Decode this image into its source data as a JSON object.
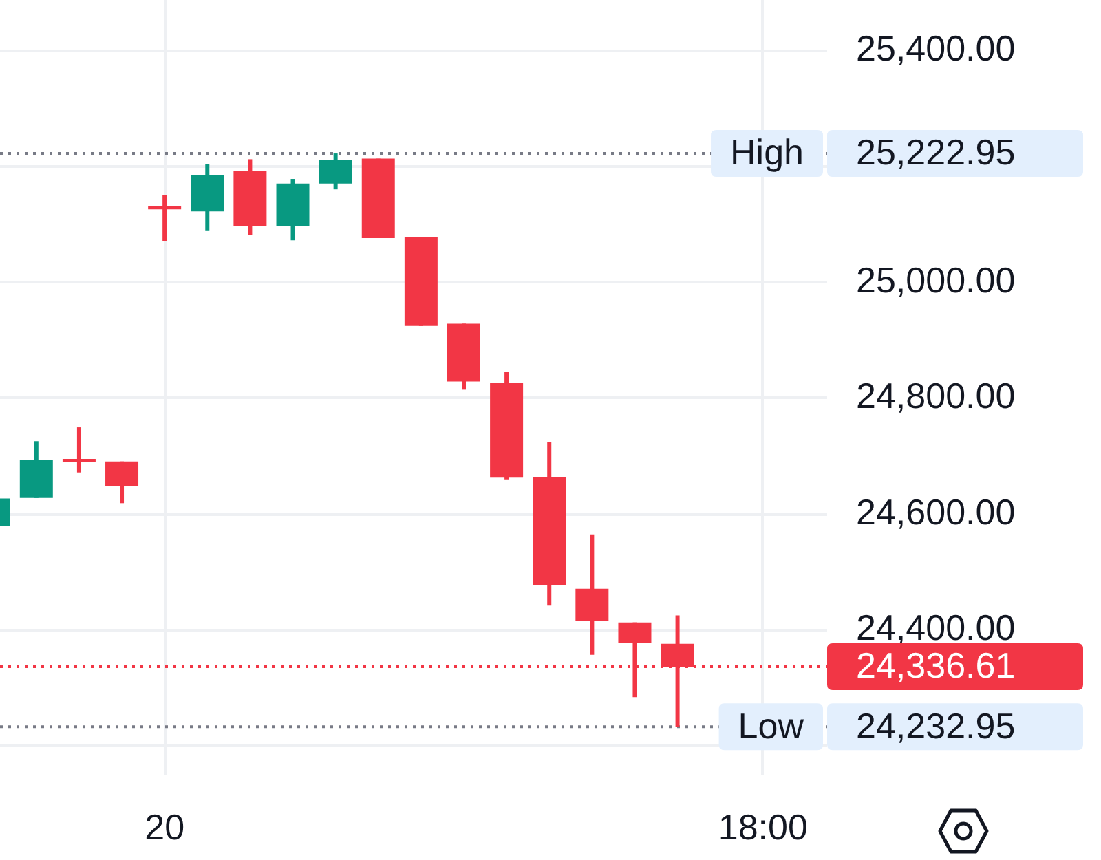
{
  "chart_data": {
    "type": "candlestick",
    "categories": [
      null,
      null,
      null,
      null,
      "20",
      null,
      null,
      null,
      null,
      null,
      null,
      null,
      null,
      null,
      null,
      null,
      null,
      null,
      "18:00",
      null
    ],
    "ohlc": [
      [
        24579,
        24627,
        24579,
        24627
      ],
      [
        24628,
        24726,
        24628,
        24693
      ],
      [
        24693,
        24750,
        24672,
        24692
      ],
      [
        24691,
        24691,
        24619,
        24648
      ],
      [
        25130,
        25151,
        25071,
        25129
      ],
      [
        25123,
        25205,
        25089,
        25186
      ],
      [
        25193,
        25213,
        25082,
        25098
      ],
      [
        25098,
        25179,
        25073,
        25171
      ],
      [
        25171,
        25222.95,
        25161,
        25212
      ],
      [
        25214,
        25214,
        25077,
        25077
      ],
      [
        25079,
        25079,
        24925,
        24925
      ],
      [
        24929,
        24929,
        24815,
        24829
      ],
      [
        24827,
        24845,
        24660,
        24663
      ],
      [
        24664,
        24724,
        24442,
        24477
      ],
      [
        24471,
        24565,
        24357,
        24415
      ],
      [
        24413,
        24413,
        24284,
        24377
      ],
      [
        24376,
        24425,
        24232.95,
        24336.61
      ],
      null,
      null,
      null
    ],
    "colors": [
      "#089981",
      "#089981",
      "#f23645",
      "#f23645",
      "#f23645",
      "#089981",
      "#f23645",
      "#089981",
      "#089981",
      "#f23645",
      "#f23645",
      "#f23645",
      "#f23645",
      "#f23645",
      "#f23645",
      "#f23645",
      "#f23645",
      null,
      null,
      null
    ],
    "ylim": [
      24150,
      25488
    ],
    "yticks": [
      {
        "value": 24200,
        "label": null
      },
      {
        "value": 24400,
        "label": "24,400.00"
      },
      {
        "value": 24600,
        "label": "24,600.00"
      },
      {
        "value": 24800,
        "label": "24,800.00"
      },
      {
        "value": 25000,
        "label": "25,000.00"
      },
      {
        "value": 25200,
        "label": null
      },
      {
        "value": 25400,
        "label": "25,400.00"
      }
    ],
    "grid": true,
    "ref_lines": [
      {
        "axis": "y",
        "value": 25222.95,
        "label": "High",
        "color": "#787b86",
        "line_style": "dotted"
      },
      {
        "axis": "y",
        "value": 24336.61,
        "color": "#f23645",
        "line_style": "dotted"
      },
      {
        "axis": "y",
        "value": 24232.95,
        "label": "Low",
        "color": "#787b86",
        "line_style": "dotted"
      }
    ],
    "annotations": [
      "25,222.95",
      "24,336.61",
      "24,232.95"
    ]
  }
}
